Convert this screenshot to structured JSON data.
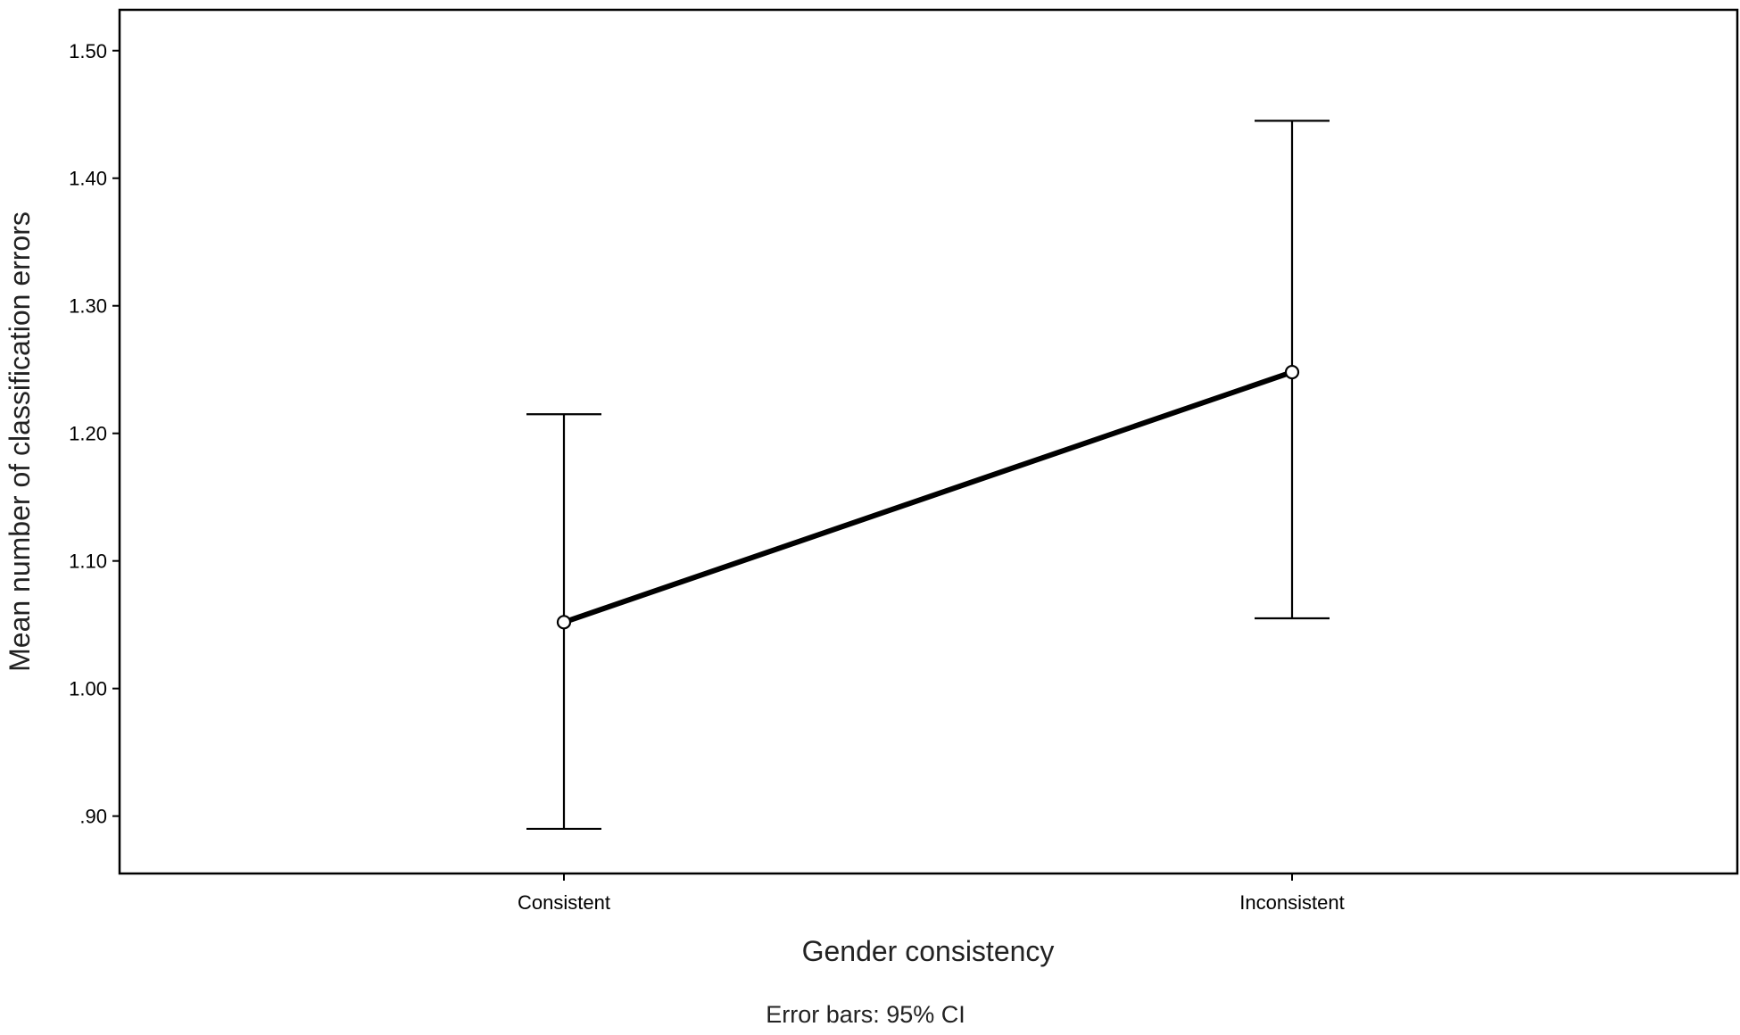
{
  "chart_data": {
    "type": "line",
    "categories": [
      "Consistent",
      "Inconsistent"
    ],
    "series": [
      {
        "values": [
          1.052,
          1.248
        ],
        "ci_lower": [
          0.89,
          1.055
        ],
        "ci_upper": [
          1.215,
          1.445
        ]
      }
    ],
    "xlabel": "Gender consistency",
    "ylabel": "Mean number of classification errors",
    "yticks": [
      0.9,
      1.0,
      1.1,
      1.2,
      1.3,
      1.4,
      1.5
    ],
    "ytick_labels": [
      ".90",
      "1.00",
      "1.10",
      "1.20",
      "1.30",
      "1.40",
      "1.50"
    ],
    "ylim": [
      0.855,
      1.532
    ],
    "grid": false,
    "footnote": "Error bars: 95% CI",
    "colors": {
      "line": "#000000",
      "axis": "#000000"
    }
  }
}
